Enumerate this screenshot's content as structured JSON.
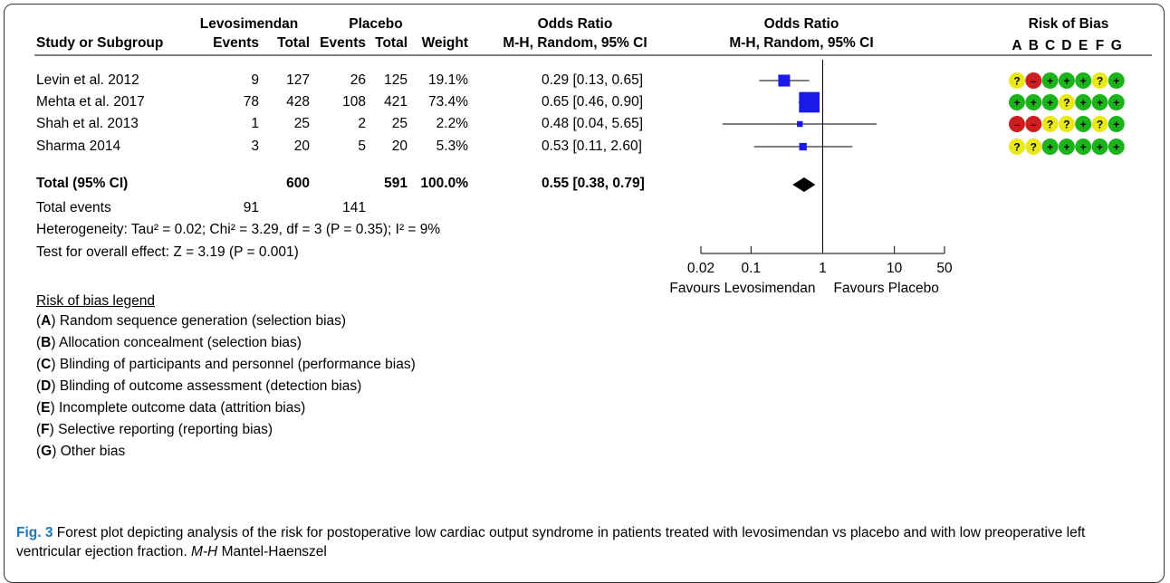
{
  "headers": {
    "group1": "Levosimendan",
    "group2": "Placebo",
    "or1": "Odds Ratio",
    "or2": "Odds Ratio",
    "rob": "Risk of Bias",
    "study": "Study or Subgroup",
    "events1": "Events",
    "total1": "Total",
    "events2": "Events",
    "total2": "Total",
    "weight": "Weight",
    "method1": "M-H, Random, 95% CI",
    "method2": "M-H, Random, 95% CI",
    "rob_letters": [
      "A",
      "B",
      "C",
      "D",
      "E",
      "F",
      "G"
    ]
  },
  "studies": [
    {
      "name": "Levin et al. 2012",
      "e1": "9",
      "t1": "127",
      "e2": "26",
      "t2": "125",
      "weight": "19.1%",
      "ci": "0.29 [0.13, 0.65]",
      "or": 0.29,
      "lo": 0.13,
      "hi": 0.65,
      "w": 19.1,
      "rob": [
        "?",
        "-",
        "+",
        "+",
        "+",
        "?",
        "+"
      ]
    },
    {
      "name": "Mehta et al. 2017",
      "e1": "78",
      "t1": "428",
      "e2": "108",
      "t2": "421",
      "weight": "73.4%",
      "ci": "0.65 [0.46, 0.90]",
      "or": 0.65,
      "lo": 0.46,
      "hi": 0.9,
      "w": 73.4,
      "rob": [
        "+",
        "+",
        "+",
        "?",
        "+",
        "+",
        "+"
      ]
    },
    {
      "name": "Shah et al. 2013",
      "e1": "1",
      "t1": "25",
      "e2": "2",
      "t2": "25",
      "weight": "2.2%",
      "ci": "0.48 [0.04, 5.65]",
      "or": 0.48,
      "lo": 0.04,
      "hi": 5.65,
      "w": 2.2,
      "rob": [
        "-",
        "-",
        "?",
        "?",
        "+",
        "?",
        "+"
      ]
    },
    {
      "name": "Sharma 2014",
      "e1": "3",
      "t1": "20",
      "e2": "5",
      "t2": "20",
      "weight": "5.3%",
      "ci": "0.53 [0.11, 2.60]",
      "or": 0.53,
      "lo": 0.11,
      "hi": 2.6,
      "w": 5.3,
      "rob": [
        "?",
        "?",
        "+",
        "+",
        "+",
        "+",
        "+"
      ]
    }
  ],
  "total": {
    "label": "Total (95% CI)",
    "t1": "600",
    "t2": "591",
    "weight": "100.0%",
    "ci": "0.55 [0.38, 0.79]",
    "or": 0.55,
    "lo": 0.38,
    "hi": 0.79
  },
  "events": {
    "label": "Total events",
    "e1": "91",
    "e2": "141"
  },
  "heterogeneity": "Heterogeneity: Tau² = 0.02; Chi² = 3.29, df = 3 (P = 0.35); I² = 9%",
  "overall": "Test for overall effect: Z = 3.19 (P = 0.001)",
  "axis": {
    "ticks": [
      0.02,
      0.1,
      1,
      10,
      50
    ],
    "tick_labels": [
      "0.02",
      "0.1",
      "1",
      "10",
      "50"
    ],
    "favours_left": "Favours Levosimendan",
    "favours_right": "Favours Placebo"
  },
  "rob_colors": {
    "+": "#1db31d",
    "-": "#cc1f1f",
    "?": "#e8e81a"
  },
  "diamond_color": "#000000",
  "box_color": "#1a1ae6",
  "legend": {
    "title": "Risk of bias legend",
    "items": [
      {
        "k": "A",
        "text": " Random sequence generation (selection bias)"
      },
      {
        "k": "B",
        "text": " Allocation concealment (selection bias)"
      },
      {
        "k": "C",
        "text": " Blinding of participants and personnel (performance bias)"
      },
      {
        "k": "D",
        "text": " Blinding of outcome assessment (detection bias)"
      },
      {
        "k": "E",
        "text": " Incomplete outcome data (attrition bias)"
      },
      {
        "k": "F",
        "text": " Selective reporting (reporting bias)"
      },
      {
        "k": "G",
        "text": " Other bias"
      }
    ]
  },
  "caption": {
    "label": "Fig. 3",
    "text1": " Forest plot depicting analysis of the risk for postoperative low cardiac output syndrome in patients treated with levosimendan vs placebo and with low preoperative left ventricular ejection fraction. ",
    "abbr": "M-H",
    "text2": " Mantel-Haenszel"
  },
  "chart_data": {
    "type": "forest",
    "x_scale": "log",
    "xlim": [
      0.02,
      50
    ],
    "studies": [
      {
        "name": "Levin et al. 2012",
        "or": 0.29,
        "ci": [
          0.13,
          0.65
        ],
        "weight": 19.1
      },
      {
        "name": "Mehta et al. 2017",
        "or": 0.65,
        "ci": [
          0.46,
          0.9
        ],
        "weight": 73.4
      },
      {
        "name": "Shah et al. 2013",
        "or": 0.48,
        "ci": [
          0.04,
          5.65
        ],
        "weight": 2.2
      },
      {
        "name": "Sharma 2014",
        "or": 0.53,
        "ci": [
          0.11,
          2.6
        ],
        "weight": 5.3
      }
    ],
    "pooled": {
      "or": 0.55,
      "ci": [
        0.38,
        0.79
      ]
    }
  }
}
